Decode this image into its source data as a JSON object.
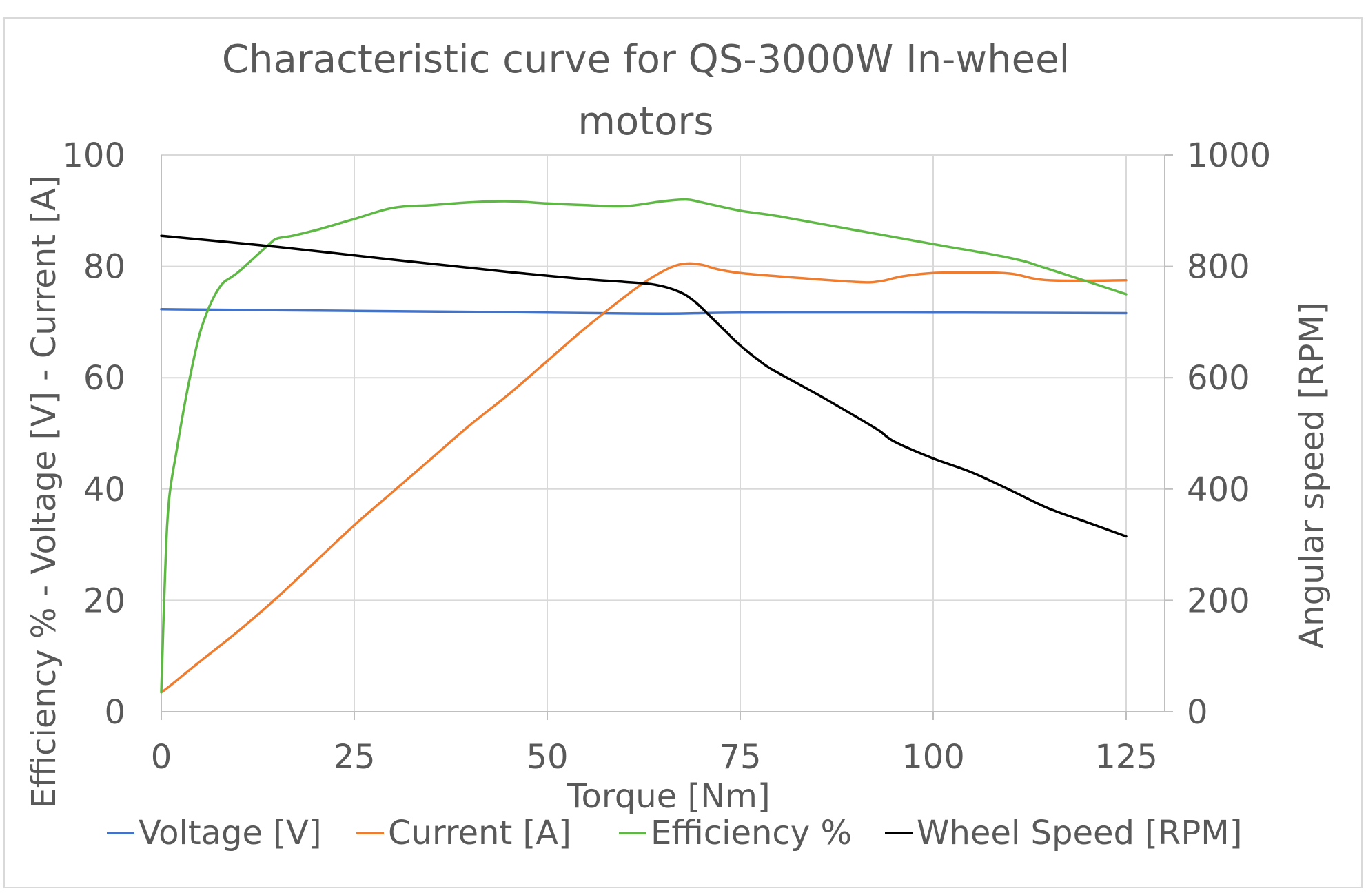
{
  "chart_data": {
    "type": "line",
    "title": "Characteristic  curve for QS-3000W In-wheel motors",
    "title_lines": [
      "Characteristic  curve for QS-3000W In-wheel",
      "motors"
    ],
    "xlabel": "Torque [Nm]",
    "ylabel": "Efficiency % - Voltage [V] - Current [A]",
    "y2label": "Angular speed [RPM]",
    "xlim": [
      0,
      130
    ],
    "ylim": [
      0,
      100
    ],
    "y2lim": [
      0,
      1000
    ],
    "x_ticks": [
      "0",
      "25",
      "50",
      "75",
      "100",
      "125"
    ],
    "y_ticks": [
      "0",
      "20",
      "40",
      "60",
      "80",
      "100"
    ],
    "y2_ticks": [
      "0",
      "200",
      "400",
      "600",
      "800",
      "1000"
    ],
    "grid": true,
    "legend_position": "bottom",
    "series": [
      {
        "name": "Voltage [V]",
        "axis": "left",
        "color": "#4472c4",
        "x": [
          0,
          25,
          50,
          65,
          75,
          100,
          125
        ],
        "y": [
          72.3,
          72.0,
          71.7,
          71.5,
          71.7,
          71.7,
          71.6
        ]
      },
      {
        "name": "Current [A]",
        "axis": "left",
        "color": "#ed7d31",
        "x": [
          0,
          1,
          5,
          10,
          15,
          20,
          25,
          30,
          35,
          40,
          45,
          50,
          55,
          60,
          63,
          66,
          68,
          70,
          72,
          75,
          80,
          90,
          93,
          96,
          100,
          105,
          110,
          115,
          125
        ],
        "y": [
          3.5,
          4.5,
          9,
          14.5,
          20.5,
          27,
          33.5,
          39.5,
          45.5,
          51.5,
          57,
          63,
          69,
          74.5,
          77.5,
          79.8,
          80.5,
          80.3,
          79.5,
          78.8,
          78.2,
          77.2,
          77.3,
          78.2,
          78.8,
          78.9,
          78.7,
          77.5,
          77.5
        ]
      },
      {
        "name": "Efficiency %",
        "axis": "left",
        "color": "#5fb846",
        "x": [
          0,
          0.5,
          1,
          2,
          3,
          4,
          5,
          6,
          7,
          8,
          9,
          10,
          12,
          14,
          15,
          17,
          20,
          25,
          30,
          35,
          40,
          45,
          50,
          55,
          60,
          65,
          68,
          70,
          75,
          80,
          90,
          100,
          110,
          115,
          125
        ],
        "y": [
          3.5,
          25,
          38,
          47,
          55,
          62,
          68,
          72,
          75,
          77,
          78,
          79,
          81.5,
          84,
          85,
          85.5,
          86.5,
          88.5,
          90.5,
          91,
          91.5,
          91.7,
          91.3,
          91,
          90.8,
          91.7,
          92,
          91.5,
          90,
          89,
          86.5,
          84,
          81.5,
          79.5,
          75
        ]
      },
      {
        "name": "Wheel Speed [RPM]",
        "axis": "right",
        "color": "#000000",
        "x": [
          0,
          15,
          30,
          45,
          55,
          60,
          64,
          67,
          69,
          71,
          73,
          75,
          78,
          80,
          85,
          90,
          93,
          95,
          100,
          105,
          110,
          115,
          120,
          125
        ],
        "y": [
          855,
          835,
          812,
          790,
          777,
          772,
          767,
          755,
          738,
          712,
          685,
          658,
          625,
          608,
          570,
          530,
          505,
          485,
          455,
          430,
          398,
          365,
          340,
          315
        ]
      }
    ]
  }
}
